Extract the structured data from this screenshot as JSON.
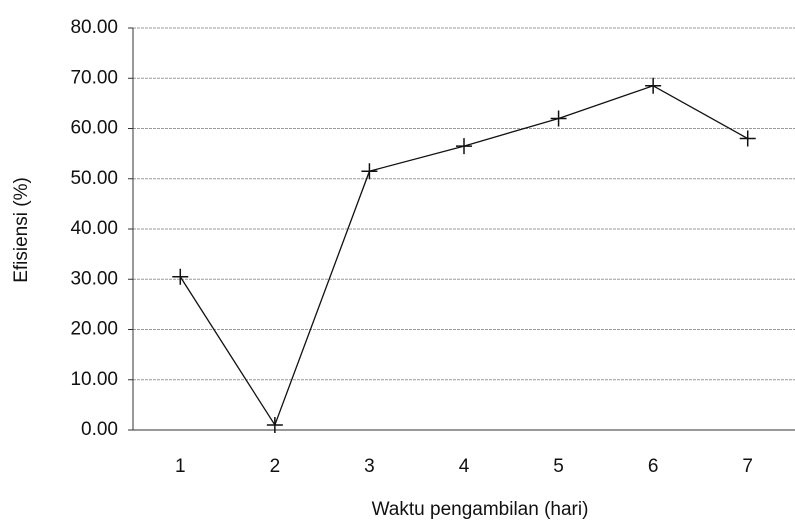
{
  "chart_data": {
    "type": "line",
    "x_label": "Waktu pengambilan (hari)",
    "y_label": "Efisiensi (%)",
    "categories": [
      "1",
      "2",
      "3",
      "4",
      "5",
      "6",
      "7"
    ],
    "values": [
      30.5,
      1,
      51.5,
      56.5,
      62,
      68.5,
      58
    ],
    "color": "#111111",
    "marker": "plus",
    "ylim": [
      0,
      80
    ],
    "yticks": [
      {
        "value": 0,
        "label": "0.00"
      },
      {
        "value": 10,
        "label": "10.00"
      },
      {
        "value": 20,
        "label": "20.00"
      },
      {
        "value": 30,
        "label": "30.00"
      },
      {
        "value": 40,
        "label": "40.00"
      },
      {
        "value": 50,
        "label": "50.00"
      },
      {
        "value": 60,
        "label": "60.00"
      },
      {
        "value": 70,
        "label": "70.00"
      },
      {
        "value": 80,
        "label": "80.00"
      }
    ],
    "grid": true
  }
}
